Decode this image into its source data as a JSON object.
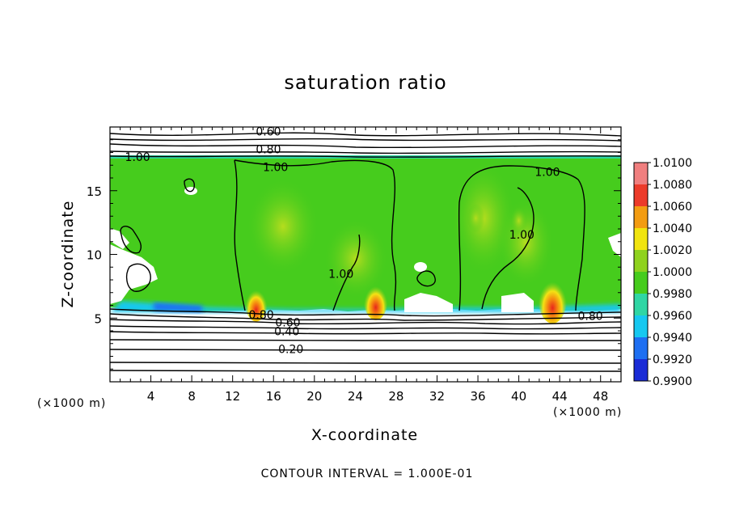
{
  "chart_data": {
    "type": "heatmap",
    "title": "saturation ratio",
    "xlabel": "X-coordinate",
    "ylabel": "Z-coordinate",
    "x_unit_label": "(×1000 m)",
    "footer": "CONTOUR INTERVAL = 1.000E-01",
    "xlim": [
      0,
      50
    ],
    "ylim": [
      0,
      20
    ],
    "x_ticks": [
      4,
      8,
      12,
      16,
      20,
      24,
      28,
      32,
      36,
      40,
      44,
      48
    ],
    "y_ticks": [
      5,
      10,
      15
    ],
    "colorbar": {
      "min": 0.99,
      "max": 1.01,
      "labels": [
        "1.0100",
        "1.0080",
        "1.0060",
        "1.0040",
        "1.0020",
        "1.0000",
        "0.9980",
        "0.9960",
        "0.9940",
        "0.9920",
        "0.9900"
      ],
      "colors": [
        "#f07f7f",
        "#ec3b2a",
        "#f39c12",
        "#f1e40f",
        "#8fd21e",
        "#46cc1d",
        "#2fd6a4",
        "#16c8f0",
        "#1e6ff2",
        "#1a2cd6",
        "#6a1aa6"
      ]
    },
    "contour_labels": [
      {
        "text": "0.60",
        "x": 15.5,
        "y": 19.6
      },
      {
        "text": "0.80",
        "x": 15.5,
        "y": 18.2
      },
      {
        "text": "1.00",
        "x": 2.7,
        "y": 17.6
      },
      {
        "text": "1.00",
        "x": 16.2,
        "y": 16.8
      },
      {
        "text": "1.00",
        "x": 42.8,
        "y": 16.4
      },
      {
        "text": "1.00",
        "x": 40.3,
        "y": 11.5
      },
      {
        "text": "1.00",
        "x": 22.6,
        "y": 8.4
      },
      {
        "text": "0.80",
        "x": 14.8,
        "y": 5.2
      },
      {
        "text": "0.60",
        "x": 17.4,
        "y": 4.6
      },
      {
        "text": "0.40",
        "x": 17.3,
        "y": 3.9
      },
      {
        "text": "0.20",
        "x": 17.7,
        "y": 2.5
      },
      {
        "text": "0.80",
        "x": 47.0,
        "y": 5.1
      }
    ],
    "hotspots": [
      {
        "x": 43.3,
        "y": 6.0,
        "peak": 1.01
      },
      {
        "x": 26.0,
        "y": 6.0,
        "peak": 1.007
      },
      {
        "x": 14.3,
        "y": 5.8,
        "peak": 1.006
      },
      {
        "x": 35.8,
        "y": 12.5,
        "peak": 1.003
      },
      {
        "x": 40.0,
        "y": 12.3,
        "peak": 1.003
      }
    ]
  }
}
